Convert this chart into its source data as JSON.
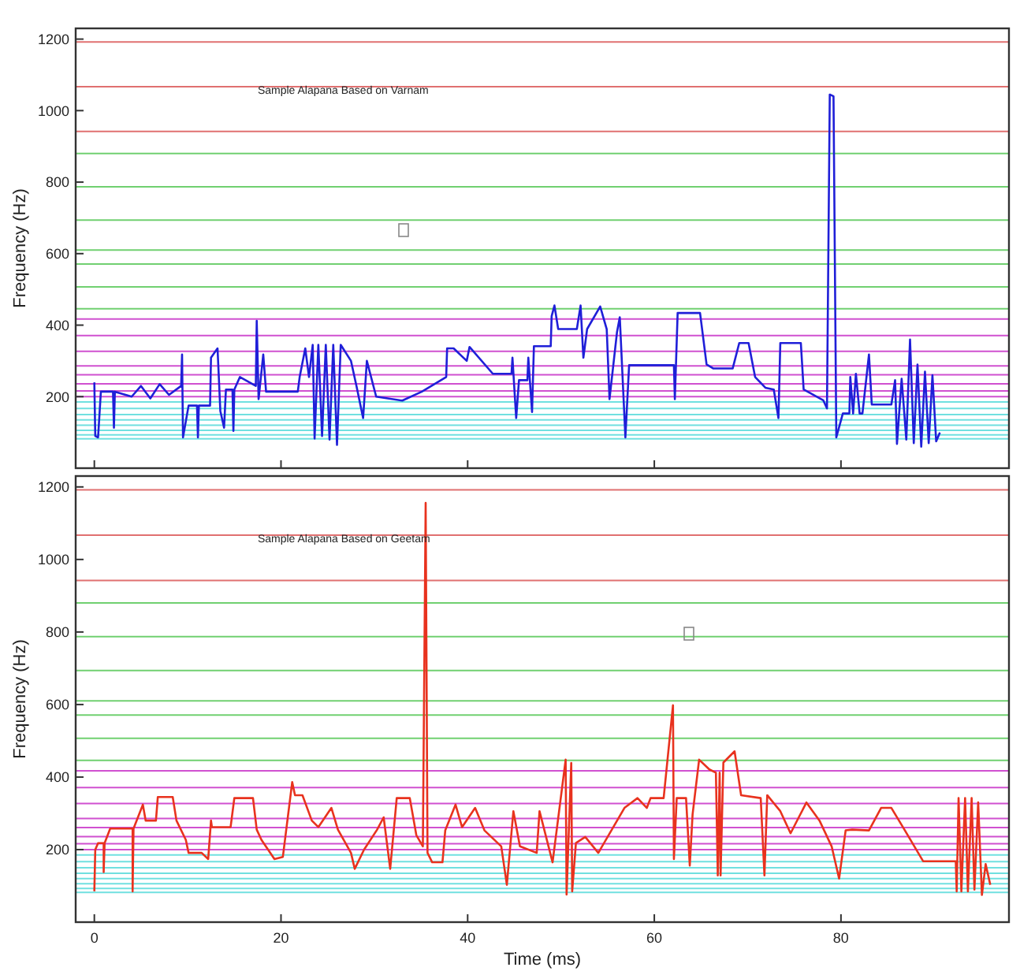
{
  "chart_data": [
    {
      "type": "line",
      "title": "Sample Alapana Based on Varnam",
      "ylabel": "Frequency (Hz)",
      "xlim": [
        -2,
        98
      ],
      "xticks": [
        0,
        20,
        40,
        60,
        80
      ],
      "ylim": [
        0,
        1230
      ],
      "yticks": [
        200,
        400,
        600,
        800,
        1000,
        1200
      ],
      "tick_labels": "y",
      "grid": false,
      "marker": "none",
      "line_style": "solid",
      "series": [
        {
          "color": "#1f1fd8",
          "x": [
            0,
            0.1,
            0.4,
            0.7,
            2,
            2.1,
            2.2,
            4,
            5,
            6,
            7,
            8,
            9.3,
            9.4,
            9.5,
            10.1,
            11,
            11.1,
            11.2,
            12.4,
            12.5,
            13.2,
            13.5,
            13.9,
            14.1,
            14.8,
            14.9,
            15,
            15.6,
            17.3,
            17.4,
            17.6,
            18.1,
            18.4,
            21.8,
            22,
            22.6,
            23,
            23.4,
            23.6,
            24,
            24.4,
            24.8,
            25.2,
            25.6,
            26,
            26.4,
            27.5,
            28.1,
            28.8,
            29.2,
            30.2,
            33,
            35.1,
            37.7,
            37.8,
            38.5,
            39.9,
            40.2,
            42.7,
            44.7,
            44.8,
            45.2,
            45.5,
            46.4,
            46.5,
            46.9,
            47.1,
            48.9,
            49,
            49.3,
            49.7,
            51.7,
            52.1,
            52.4,
            52.8,
            54.2,
            54.9,
            55.2,
            56,
            56.3,
            56.9,
            57.3,
            62.1,
            62.2,
            62.5,
            64.9,
            65.6,
            66.3,
            68.4,
            69.1,
            70.1,
            70.8,
            71.9,
            72.8,
            73.3,
            73.5,
            75.7,
            76,
            78.1,
            78.5,
            78.8,
            79.2,
            79.5,
            80.2,
            80.9,
            81,
            81.3,
            81.6,
            82,
            82.3,
            83,
            83.3,
            85.4,
            85.8,
            86,
            86.5,
            87,
            87.4,
            87.8,
            88.2,
            88.6,
            89,
            89.4,
            89.8,
            90.2,
            90.6
          ],
          "values": [
            240,
            90,
            86,
            214,
            214,
            113,
            214,
            200,
            230,
            195,
            235,
            205,
            230,
            318,
            86,
            175,
            175,
            86,
            175,
            175,
            309,
            335,
            160,
            113,
            220,
            220,
            104,
            220,
            255,
            230,
            412,
            193,
            318,
            214,
            214,
            255,
            335,
            255,
            345,
            83,
            345,
            90,
            345,
            80,
            345,
            65,
            345,
            300,
            228,
            140,
            300,
            200,
            189,
            214,
            255,
            335,
            335,
            300,
            339,
            264,
            264,
            309,
            140,
            246,
            246,
            309,
            157,
            341,
            341,
            425,
            455,
            389,
            389,
            455,
            309,
            389,
            452,
            389,
            193,
            380,
            422,
            86,
            288,
            288,
            193,
            434,
            434,
            290,
            279,
            279,
            350,
            350,
            255,
            225,
            220,
            140,
            350,
            350,
            220,
            190,
            167,
            1045,
            1040,
            86,
            153,
            153,
            255,
            153,
            264,
            153,
            153,
            318,
            178,
            178,
            246,
            68,
            250,
            80,
            360,
            70,
            290,
            60,
            270,
            70,
            260,
            75,
            100
          ]
        }
      ],
      "ref_lines": [
        {
          "axis": "y",
          "value": 1192,
          "color": "#e07070"
        },
        {
          "axis": "y",
          "value": 1067,
          "color": "#e07070"
        },
        {
          "axis": "y",
          "value": 942,
          "color": "#e07070"
        },
        {
          "axis": "y",
          "value": 880,
          "color": "#70d070"
        },
        {
          "axis": "y",
          "value": 787,
          "color": "#70d070"
        },
        {
          "axis": "y",
          "value": 694,
          "color": "#70d070"
        },
        {
          "axis": "y",
          "value": 610,
          "color": "#70d070"
        },
        {
          "axis": "y",
          "value": 571,
          "color": "#70d070"
        },
        {
          "axis": "y",
          "value": 507,
          "color": "#70d070"
        },
        {
          "axis": "y",
          "value": 446,
          "color": "#70d070"
        },
        {
          "axis": "y",
          "value": 417,
          "color": "#d050d0"
        },
        {
          "axis": "y",
          "value": 371,
          "color": "#d050d0"
        },
        {
          "axis": "y",
          "value": 327,
          "color": "#d050d0"
        },
        {
          "axis": "y",
          "value": 286,
          "color": "#d050d0"
        },
        {
          "axis": "y",
          "value": 261,
          "color": "#d050d0"
        },
        {
          "axis": "y",
          "value": 236,
          "color": "#d050d0"
        },
        {
          "axis": "y",
          "value": 216,
          "color": "#d050d0"
        },
        {
          "axis": "y",
          "value": 200,
          "color": "#d050d0"
        },
        {
          "axis": "y",
          "value": 185,
          "color": "#70e0e0"
        },
        {
          "axis": "y",
          "value": 167,
          "color": "#70e0e0"
        },
        {
          "axis": "y",
          "value": 150,
          "color": "#70e0e0"
        },
        {
          "axis": "y",
          "value": 135,
          "color": "#70e0e0"
        },
        {
          "axis": "y",
          "value": 120,
          "color": "#70e0e0"
        },
        {
          "axis": "y",
          "value": 106,
          "color": "#70e0e0"
        },
        {
          "axis": "y",
          "value": 93,
          "color": "#70e0e0"
        },
        {
          "axis": "y",
          "value": 82,
          "color": "#70e0e0"
        }
      ]
    },
    {
      "type": "line",
      "title": "Sample Alapana Based on Geetam",
      "xlabel": "Time (ms)",
      "ylabel": "Frequency (Hz)",
      "xlim": [
        -2,
        98
      ],
      "xticks": [
        0,
        20,
        40,
        60,
        80
      ],
      "ylim": [
        0,
        1230
      ],
      "yticks": [
        200,
        400,
        600,
        800,
        1000,
        1200
      ],
      "grid": false,
      "marker": "none",
      "line_style": "solid",
      "series": [
        {
          "color": "#e8321e",
          "x": [
            0,
            0.1,
            0.4,
            1,
            1,
            1.1,
            1.7,
            4.1,
            4.1,
            4.2,
            5.2,
            5.5,
            6.6,
            6.8,
            8.4,
            8.8,
            9.8,
            10.1,
            11.5,
            12.2,
            12.5,
            12.6,
            14.6,
            15,
            17,
            17.4,
            17.9,
            19.3,
            20.2,
            21.2,
            21.5,
            22.3,
            23.3,
            24,
            25.4,
            26.1,
            27.5,
            27.9,
            28.9,
            30.3,
            31,
            31.7,
            32.4,
            33.8,
            34.5,
            35.2,
            35.5,
            35.7,
            36.2,
            37.3,
            37.6,
            38.7,
            39.4,
            40.8,
            41.8,
            43.6,
            44.2,
            44.9,
            45.6,
            47.4,
            47.7,
            49.1,
            50.5,
            50.6,
            51.1,
            51.2,
            51.6,
            52.6,
            54,
            55.4,
            56.8,
            58.2,
            59.2,
            59.6,
            61,
            62,
            62.1,
            62.4,
            63.4,
            63.8,
            64.1,
            64.8,
            65.9,
            66.6,
            66.8,
            67,
            67.1,
            67.4,
            68.6,
            69.3,
            71.4,
            71.8,
            72.1,
            73.5,
            74.6,
            76.3,
            77.7,
            79,
            79.8,
            80.5,
            81.2,
            83,
            84.3,
            85.4,
            86.8,
            88.8,
            92.3,
            92.4,
            92.6,
            92.9,
            93.3,
            93.6,
            94,
            94.3,
            94.7,
            95.1,
            95.5,
            96
          ],
          "values": [
            85,
            200,
            218,
            218,
            138,
            218,
            258,
            258,
            85,
            258,
            324,
            280,
            280,
            345,
            345,
            280,
            227,
            191,
            191,
            174,
            280,
            262,
            262,
            342,
            342,
            255,
            227,
            174,
            180,
            386,
            350,
            350,
            280,
            262,
            315,
            255,
            191,
            147,
            200,
            255,
            289,
            147,
            342,
            342,
            240,
            209,
            1156,
            191,
            165,
            165,
            253,
            324,
            262,
            315,
            253,
            209,
            103,
            306,
            209,
            191,
            306,
            165,
            448,
            76,
            439,
            85,
            218,
            235,
            191,
            253,
            315,
            342,
            315,
            342,
            342,
            598,
            174,
            342,
            342,
            156,
            297,
            448,
            421,
            412,
            129,
            412,
            129,
            440,
            471,
            350,
            342,
            129,
            350,
            306,
            245,
            330,
            280,
            209,
            120,
            253,
            255,
            253,
            315,
            315,
            255,
            168,
            168,
            85,
            342,
            85,
            342,
            85,
            342,
            90,
            330,
            75,
            160,
            103
          ]
        }
      ],
      "ref_lines": [
        {
          "axis": "y",
          "value": 1192,
          "color": "#e07070"
        },
        {
          "axis": "y",
          "value": 1067,
          "color": "#e07070"
        },
        {
          "axis": "y",
          "value": 942,
          "color": "#e07070"
        },
        {
          "axis": "y",
          "value": 880,
          "color": "#70d070"
        },
        {
          "axis": "y",
          "value": 787,
          "color": "#70d070"
        },
        {
          "axis": "y",
          "value": 694,
          "color": "#70d070"
        },
        {
          "axis": "y",
          "value": 610,
          "color": "#70d070"
        },
        {
          "axis": "y",
          "value": 571,
          "color": "#70d070"
        },
        {
          "axis": "y",
          "value": 507,
          "color": "#70d070"
        },
        {
          "axis": "y",
          "value": 446,
          "color": "#70d070"
        },
        {
          "axis": "y",
          "value": 417,
          "color": "#d050d0"
        },
        {
          "axis": "y",
          "value": 371,
          "color": "#d050d0"
        },
        {
          "axis": "y",
          "value": 327,
          "color": "#d050d0"
        },
        {
          "axis": "y",
          "value": 286,
          "color": "#d050d0"
        },
        {
          "axis": "y",
          "value": 261,
          "color": "#d050d0"
        },
        {
          "axis": "y",
          "value": 236,
          "color": "#d050d0"
        },
        {
          "axis": "y",
          "value": 216,
          "color": "#d050d0"
        },
        {
          "axis": "y",
          "value": 200,
          "color": "#d050d0"
        },
        {
          "axis": "y",
          "value": 185,
          "color": "#70e0e0"
        },
        {
          "axis": "y",
          "value": 167,
          "color": "#70e0e0"
        },
        {
          "axis": "y",
          "value": 150,
          "color": "#70e0e0"
        },
        {
          "axis": "y",
          "value": 135,
          "color": "#70e0e0"
        },
        {
          "axis": "y",
          "value": 120,
          "color": "#70e0e0"
        },
        {
          "axis": "y",
          "value": 106,
          "color": "#70e0e0"
        },
        {
          "axis": "y",
          "value": 93,
          "color": "#70e0e0"
        },
        {
          "axis": "y",
          "value": 82,
          "color": "#70e0e0"
        }
      ]
    }
  ]
}
